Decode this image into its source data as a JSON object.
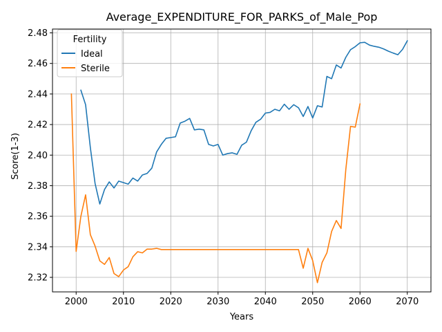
{
  "chart_data": {
    "type": "line",
    "title": "Average_EXPENDITURE_FOR_PARKS_of_Male_Pop",
    "xlabel": "Years",
    "ylabel": "Score(1-3)",
    "xlim": [
      1995,
      2075
    ],
    "ylim": [
      2.3105,
      2.4825
    ],
    "xticks": [
      2000,
      2010,
      2020,
      2030,
      2040,
      2050,
      2060,
      2070
    ],
    "xtick_labels": [
      "2000",
      "2010",
      "2020",
      "2030",
      "2040",
      "2050",
      "2060",
      "2070"
    ],
    "yticks": [
      2.32,
      2.34,
      2.36,
      2.38,
      2.4,
      2.42,
      2.44,
      2.46,
      2.48
    ],
    "ytick_labels": [
      "2.32",
      "2.34",
      "2.36",
      "2.38",
      "2.40",
      "2.42",
      "2.44",
      "2.46",
      "2.48"
    ],
    "grid": true,
    "legend": {
      "title": "Fertility",
      "placement": "top-left"
    },
    "series": [
      {
        "name": "Ideal",
        "color": "#1f77b4",
        "x": [
          2001,
          2002,
          2003,
          2004,
          2005,
          2006,
          2007,
          2008,
          2009,
          2010,
          2011,
          2012,
          2013,
          2014,
          2015,
          2016,
          2017,
          2018,
          2019,
          2020,
          2021,
          2022,
          2023,
          2024,
          2025,
          2026,
          2027,
          2028,
          2029,
          2030,
          2031,
          2032,
          2033,
          2034,
          2035,
          2036,
          2037,
          2038,
          2039,
          2040,
          2041,
          2042,
          2043,
          2044,
          2045,
          2046,
          2047,
          2048,
          2049,
          2050,
          2051,
          2052,
          2053,
          2054,
          2055,
          2056,
          2057,
          2058,
          2059,
          2060,
          2061,
          2062,
          2063,
          2064,
          2065,
          2066,
          2067,
          2068,
          2069,
          2070
        ],
        "y": [
          2.4425,
          2.433,
          2.405,
          2.3815,
          2.368,
          2.3775,
          2.3825,
          2.3785,
          2.383,
          2.382,
          2.381,
          2.385,
          2.383,
          2.387,
          2.388,
          2.3915,
          2.402,
          2.407,
          2.411,
          2.4115,
          2.412,
          2.421,
          2.4222,
          2.424,
          2.4165,
          2.417,
          2.4165,
          2.407,
          2.406,
          2.407,
          2.4,
          2.401,
          2.4015,
          2.4005,
          2.4065,
          2.4085,
          2.416,
          2.4215,
          2.4235,
          2.4275,
          2.428,
          2.43,
          2.429,
          2.4333,
          2.43,
          2.433,
          2.431,
          2.4253,
          2.4318,
          2.4243,
          2.4323,
          2.4315,
          2.4515,
          2.45,
          2.459,
          2.457,
          2.464,
          2.469,
          2.471,
          2.4735,
          2.4738,
          2.472,
          2.4712,
          2.4706,
          2.4695,
          2.468,
          2.4668,
          2.4657,
          2.4692,
          2.4748
        ]
      },
      {
        "name": "Sterile",
        "color": "#ff7f0e",
        "x": [
          1999,
          2000,
          2001,
          2002,
          2003,
          2004,
          2005,
          2006,
          2007,
          2008,
          2009,
          2010,
          2011,
          2012,
          2013,
          2014,
          2015,
          2016,
          2017,
          2018,
          2019,
          2020,
          2021,
          2022,
          2023,
          2024,
          2025,
          2026,
          2027,
          2028,
          2029,
          2030,
          2031,
          2032,
          2033,
          2034,
          2035,
          2036,
          2037,
          2038,
          2039,
          2040,
          2041,
          2042,
          2043,
          2044,
          2045,
          2046,
          2047,
          2048,
          2049,
          2050,
          2051,
          2052,
          2053,
          2054,
          2055,
          2056,
          2057,
          2058,
          2059,
          2060
        ],
        "y": [
          2.44,
          2.337,
          2.36,
          2.374,
          2.348,
          2.3405,
          2.3308,
          2.3285,
          2.333,
          2.3225,
          2.3205,
          2.3248,
          2.327,
          2.3335,
          2.3368,
          2.336,
          2.3385,
          2.3385,
          2.339,
          2.3382,
          2.3382,
          2.3382,
          2.3382,
          2.3382,
          2.3382,
          2.3382,
          2.3382,
          2.3382,
          2.3382,
          2.3382,
          2.3382,
          2.3382,
          2.3382,
          2.3382,
          2.3382,
          2.3382,
          2.3382,
          2.3382,
          2.3382,
          2.3382,
          2.3382,
          2.3382,
          2.3382,
          2.3382,
          2.3382,
          2.3382,
          2.3382,
          2.3382,
          2.3382,
          2.326,
          2.339,
          2.331,
          2.3165,
          2.3298,
          2.336,
          2.35,
          2.3572,
          2.352,
          2.3905,
          2.4188,
          2.4183,
          2.4335
        ]
      }
    ]
  }
}
